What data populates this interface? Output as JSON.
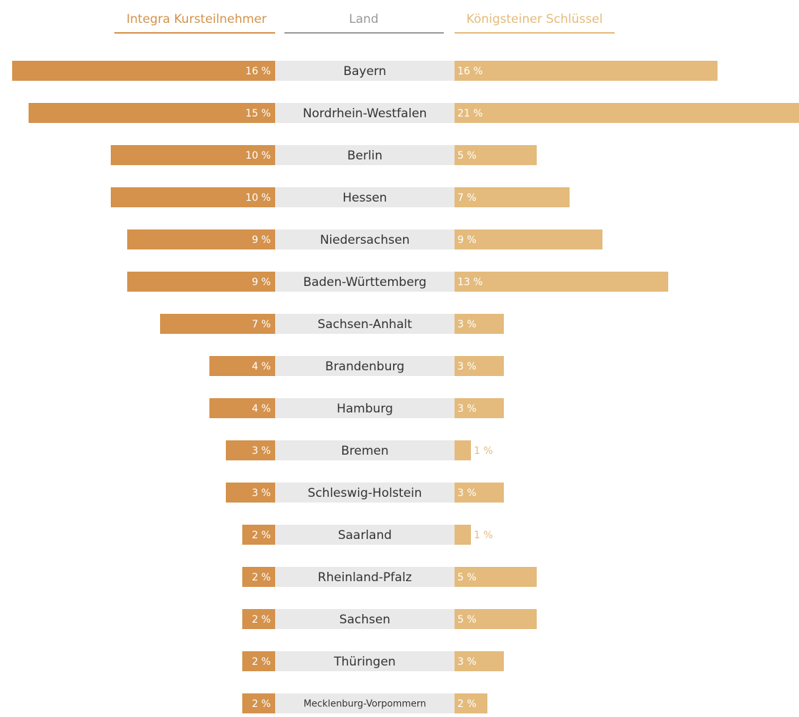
{
  "chart_data": {
    "type": "butterfly",
    "category_label": "Land",
    "categories": [
      "Bayern",
      "Nordrhein-Westfalen",
      "Berlin",
      "Hessen",
      "Niedersachsen",
      "Baden-Württemberg",
      "Sachsen-Anhalt",
      "Brandenburg",
      "Hamburg",
      "Bremen",
      "Schleswig-Holstein",
      "Saarland",
      "Rheinland-Pfalz",
      "Sachsen",
      "Thüringen",
      "Mecklenburg-Vorpommern"
    ],
    "series": [
      {
        "name": "Integra Kursteilnehmer",
        "color": "#d4924c",
        "values": [
          16,
          15,
          10,
          10,
          9,
          9,
          7,
          4,
          4,
          3,
          3,
          2,
          2,
          2,
          2,
          2
        ],
        "value_labels": [
          "16 %",
          "15 %",
          "10 %",
          "10 %",
          "9 %",
          "9 %",
          "7 %",
          "4 %",
          "4 %",
          "3 %",
          "3 %",
          "2 %",
          "2 %",
          "2 %",
          "2 %",
          "2 %"
        ]
      },
      {
        "name": "Königsteiner Schlüssel",
        "color": "#e4bb7c",
        "values": [
          16,
          21,
          5,
          7,
          9,
          13,
          3,
          3,
          3,
          1,
          3,
          1,
          5,
          5,
          3,
          2
        ],
        "value_labels": [
          "16 %",
          "21 %",
          "5 %",
          "7 %",
          "9 %",
          "13 %",
          "3 %",
          "3 %",
          "3 %",
          "1 %",
          "3 %",
          "1 %",
          "5 %",
          "5 %",
          "3 %",
          "2 %"
        ]
      }
    ]
  }
}
